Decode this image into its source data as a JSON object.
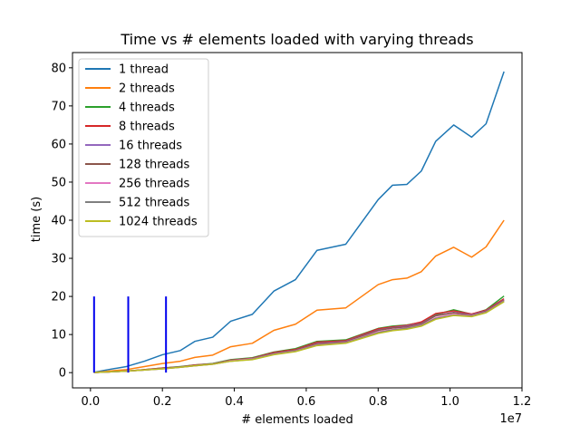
{
  "chart_data": {
    "type": "line",
    "title": "Time vs # elements loaded with varying threads",
    "xlabel": "# elements loaded",
    "ylabel": "time (s)",
    "x_offset_label": "1e7",
    "xlim": [
      -0.05,
      1.2
    ],
    "ylim": [
      -4,
      84
    ],
    "x_ticks": [
      0.0,
      0.2,
      0.4,
      0.6,
      0.8,
      1.0,
      1.2
    ],
    "x_tick_labels": [
      "0.0",
      "0.2",
      "0.4",
      "0.6",
      "0.8",
      "1.0",
      "1.2"
    ],
    "y_ticks": [
      0,
      10,
      20,
      30,
      40,
      50,
      60,
      70,
      80
    ],
    "y_tick_labels": [
      "0",
      "10",
      "20",
      "30",
      "40",
      "50",
      "60",
      "70",
      "80"
    ],
    "legend_position": "top-left",
    "x": [
      0.01,
      0.05,
      0.1,
      0.15,
      0.2,
      0.25,
      0.29,
      0.34,
      0.39,
      0.45,
      0.51,
      0.57,
      0.63,
      0.71,
      0.8,
      0.84,
      0.88,
      0.92,
      0.96,
      1.01,
      1.06,
      1.1,
      1.15
    ],
    "vlines": [
      {
        "x": 0.01,
        "y0": 0,
        "y1": 20,
        "color": "#0000ee"
      },
      {
        "x": 0.105,
        "y0": 0,
        "y1": 20,
        "color": "#0000ee"
      },
      {
        "x": 0.21,
        "y0": 0,
        "y1": 20,
        "color": "#0000ee"
      }
    ],
    "series": [
      {
        "name": "1 thread",
        "color": "#1f77b4",
        "values": [
          0.1,
          0.8,
          1.6,
          3.0,
          4.7,
          5.8,
          8.2,
          9.3,
          13.5,
          15.3,
          21.4,
          24.4,
          32.1,
          33.7,
          45.4,
          49.2,
          49.4,
          52.9,
          60.7,
          65.0,
          61.8,
          65.3,
          79.0
        ]
      },
      {
        "name": "2 threads",
        "color": "#ff7f0e",
        "values": [
          0.05,
          0.4,
          0.8,
          1.6,
          2.4,
          3.0,
          4.0,
          4.6,
          6.8,
          7.7,
          11.1,
          12.7,
          16.4,
          17.0,
          23.1,
          24.4,
          24.8,
          26.5,
          30.6,
          32.9,
          30.3,
          33.0,
          40.0
        ]
      },
      {
        "name": "4 threads",
        "color": "#2ca02c",
        "values": [
          0.03,
          0.2,
          0.4,
          0.8,
          1.2,
          1.6,
          2.0,
          2.4,
          3.4,
          3.9,
          5.4,
          6.3,
          8.2,
          8.6,
          11.6,
          12.2,
          12.5,
          13.2,
          15.2,
          16.5,
          15.3,
          16.5,
          20.1
        ]
      },
      {
        "name": "8 threads",
        "color": "#d62728",
        "values": [
          0.03,
          0.2,
          0.4,
          0.8,
          1.2,
          1.5,
          2.0,
          2.3,
          3.3,
          3.8,
          5.3,
          6.1,
          8.0,
          8.4,
          11.5,
          12.0,
          12.4,
          13.3,
          15.5,
          16.2,
          15.4,
          16.4,
          19.4
        ]
      },
      {
        "name": "16 threads",
        "color": "#9467bd",
        "values": [
          0.03,
          0.2,
          0.4,
          0.7,
          1.1,
          1.5,
          1.9,
          2.3,
          3.2,
          3.7,
          5.1,
          5.9,
          7.7,
          8.2,
          11.2,
          11.8,
          12.2,
          12.9,
          15.0,
          15.8,
          15.2,
          16.2,
          19.1
        ]
      },
      {
        "name": "128 threads",
        "color": "#8c564b",
        "values": [
          0.03,
          0.2,
          0.4,
          0.7,
          1.1,
          1.5,
          1.9,
          2.3,
          3.2,
          3.7,
          5.1,
          5.9,
          7.6,
          8.1,
          11.1,
          11.7,
          12.0,
          12.8,
          14.9,
          15.7,
          15.1,
          16.1,
          19.0
        ]
      },
      {
        "name": "256 threads",
        "color": "#e377c2",
        "values": [
          0.03,
          0.2,
          0.4,
          0.7,
          1.0,
          1.4,
          1.8,
          2.2,
          3.1,
          3.6,
          4.9,
          5.7,
          7.3,
          7.9,
          10.7,
          11.3,
          11.7,
          12.5,
          14.4,
          15.3,
          14.9,
          15.9,
          18.8
        ]
      },
      {
        "name": "512 threads",
        "color": "#7f7f7f",
        "values": [
          0.03,
          0.2,
          0.4,
          0.7,
          1.0,
          1.4,
          1.8,
          2.2,
          3.0,
          3.5,
          4.8,
          5.6,
          7.2,
          7.8,
          10.5,
          11.2,
          11.6,
          12.4,
          14.2,
          15.1,
          14.8,
          15.8,
          18.7
        ]
      },
      {
        "name": "1024 threads",
        "color": "#bcbd22",
        "values": [
          0.03,
          0.2,
          0.4,
          0.7,
          1.0,
          1.4,
          1.8,
          2.2,
          3.0,
          3.4,
          4.7,
          5.5,
          7.1,
          7.7,
          10.3,
          11.0,
          11.4,
          12.2,
          14.0,
          15.0,
          14.7,
          15.7,
          18.6
        ]
      }
    ]
  }
}
